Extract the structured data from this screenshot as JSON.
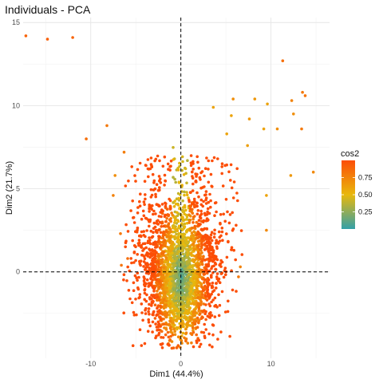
{
  "chart_data": {
    "type": "scatter",
    "title": "Individuals - PCA",
    "xlabel": "Dim1 (44.4%)",
    "ylabel": "Dim2 (21.7%)",
    "xlim": [
      -17.5,
      16.5
    ],
    "ylim": [
      -5.2,
      15.3
    ],
    "x_ticks": [
      -10,
      0,
      10
    ],
    "y_ticks": [
      0,
      5,
      10,
      15
    ],
    "x_tick_labels": [
      "-10",
      "0",
      "10"
    ],
    "y_tick_labels": [
      "0",
      "5",
      "10",
      "15"
    ],
    "grid": true,
    "reference_lines": {
      "x": 0,
      "y": 0,
      "style": "dashed"
    },
    "legend": {
      "title": "cos2",
      "position": "right",
      "labels": [
        "0.75",
        "0.50",
        "0.25"
      ],
      "label_values": [
        0.75,
        0.5,
        0.25
      ],
      "range": [
        0,
        1
      ]
    },
    "color_gradient": {
      "low": "#33a0a8",
      "mid": "#e8b80c",
      "high": "#fc4e07"
    },
    "outliers": [
      {
        "x": -17.2,
        "y": 14.2,
        "cos2": 0.9
      },
      {
        "x": -14.8,
        "y": 14.0,
        "cos2": 0.92
      },
      {
        "x": -12.0,
        "y": 14.1,
        "cos2": 0.9
      },
      {
        "x": -10.5,
        "y": 8.0,
        "cos2": 0.85
      },
      {
        "x": -8.2,
        "y": 8.8,
        "cos2": 0.8
      },
      {
        "x": 11.3,
        "y": 12.7,
        "cos2": 0.85
      },
      {
        "x": 13.5,
        "y": 10.8,
        "cos2": 0.8
      },
      {
        "x": 13.8,
        "y": 10.6,
        "cos2": 0.82
      },
      {
        "x": 12.3,
        "y": 10.3,
        "cos2": 0.75
      },
      {
        "x": 12.5,
        "y": 9.5,
        "cos2": 0.7
      },
      {
        "x": 13.4,
        "y": 8.6,
        "cos2": 0.8
      },
      {
        "x": 10.7,
        "y": 8.6,
        "cos2": 0.7
      },
      {
        "x": 9.6,
        "y": 10.1,
        "cos2": 0.6
      },
      {
        "x": 8.2,
        "y": 10.4,
        "cos2": 0.65
      },
      {
        "x": 5.8,
        "y": 10.4,
        "cos2": 0.7
      },
      {
        "x": 5.6,
        "y": 9.4,
        "cos2": 0.6
      },
      {
        "x": 3.6,
        "y": 9.9,
        "cos2": 0.6
      },
      {
        "x": 7.6,
        "y": 9.2,
        "cos2": 0.65
      },
      {
        "x": 9.2,
        "y": 8.6,
        "cos2": 0.6
      },
      {
        "x": 7.4,
        "y": 7.6,
        "cos2": 0.62
      },
      {
        "x": 5.1,
        "y": 8.3,
        "cos2": 0.6
      },
      {
        "x": 14.7,
        "y": 6.0,
        "cos2": 0.72
      },
      {
        "x": 12.2,
        "y": 5.8,
        "cos2": 0.65
      },
      {
        "x": -7.3,
        "y": 5.8,
        "cos2": 0.7
      },
      {
        "x": -6.3,
        "y": 7.2,
        "cos2": 0.78
      },
      {
        "x": 9.5,
        "y": 4.6,
        "cos2": 0.6
      },
      {
        "x": 9.5,
        "y": 2.5,
        "cos2": 0.72
      },
      {
        "x": 6.6,
        "y": 0.3,
        "cos2": 0.75
      },
      {
        "x": 6.4,
        "y": -0.3,
        "cos2": 0.8
      },
      {
        "x": -6.6,
        "y": 0.4,
        "cos2": 0.82
      },
      {
        "x": -5.9,
        "y": 0.8,
        "cos2": 0.85
      },
      {
        "x": -6.7,
        "y": 2.3,
        "cos2": 0.8
      },
      {
        "x": -7.5,
        "y": 4.6,
        "cos2": 0.76
      }
    ],
    "cluster": {
      "count": 2600,
      "seed": 7,
      "x_range": [
        -6.5,
        7.0
      ],
      "y_range": [
        -4.6,
        7.5
      ]
    }
  }
}
